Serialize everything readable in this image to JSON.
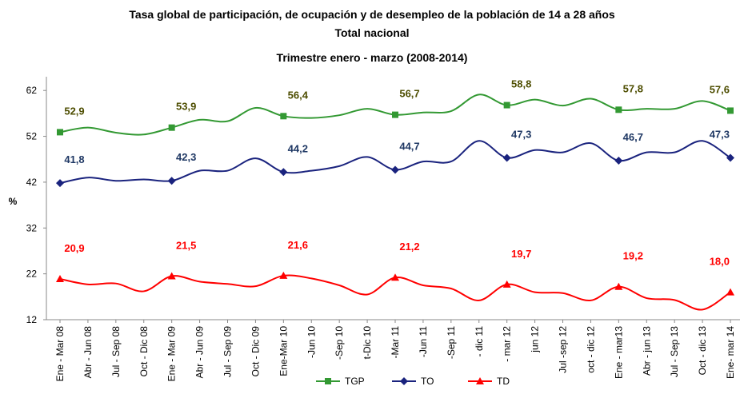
{
  "chart_data": {
    "type": "line",
    "title": "Tasa global de participación, de ocupación y de desempleo de la población de 14 a 28 años",
    "subtitle": "Total nacional",
    "period": "Trimestre enero - marzo (2008-2014)",
    "ylabel": "%",
    "categories": [
      "Ene - Mar 08",
      "Abr - Jun 08",
      "Jul - Sep 08",
      "Oct - Dic 08",
      "Ene - Mar 09",
      "Abr - Jun 09",
      "Jul - Sep 09",
      "Oct - Dic 09",
      "Ene-Mar 10",
      "-Jun 10",
      "-Sep 10",
      "t-Dic 10",
      "-Mar 11",
      "-Jun 11",
      "-Sep 11",
      "- dic 11",
      "- mar 12",
      "jun 12",
      "Jul -sep 12",
      "oct - dic 12",
      "Ene - mar13",
      "Abr - jun 13",
      "Jul - Sep 13",
      "Oct - dic 13",
      "Ene- mar 14"
    ],
    "ylim": [
      12,
      65
    ],
    "yticks": [
      12,
      22,
      32,
      42,
      52,
      62
    ],
    "grid": false,
    "legend": "bottom",
    "series": [
      {
        "name": "TGP",
        "color": "#339933",
        "label_color": "#4d4d00",
        "marker": "square",
        "values": [
          52.9,
          53.9,
          52.8,
          52.4,
          53.9,
          55.6,
          55.3,
          58.2,
          56.4,
          56.0,
          56.6,
          58.0,
          56.7,
          57.2,
          57.5,
          61.1,
          58.8,
          60.0,
          58.7,
          60.2,
          57.8,
          58.0,
          58.0,
          59.7,
          57.6
        ],
        "value_labels": [
          "52,9",
          null,
          null,
          null,
          "53,9",
          null,
          null,
          null,
          "56,4",
          null,
          null,
          null,
          "56,7",
          null,
          null,
          null,
          "58,8",
          null,
          null,
          null,
          "57,8",
          null,
          null,
          null,
          "57,6"
        ]
      },
      {
        "name": "TO",
        "color": "#1a237e",
        "label_color": "#1f3864",
        "marker": "diamond",
        "values": [
          41.8,
          43.0,
          42.3,
          42.6,
          42.3,
          44.5,
          44.5,
          47.2,
          44.2,
          44.5,
          45.5,
          47.5,
          44.7,
          46.5,
          46.5,
          51.0,
          47.3,
          49.0,
          48.5,
          50.5,
          46.7,
          48.5,
          48.5,
          51.0,
          47.3
        ],
        "value_labels": [
          "41,8",
          null,
          null,
          null,
          "42,3",
          null,
          null,
          null,
          "44,2",
          null,
          null,
          null,
          "44,7",
          null,
          null,
          null,
          "47,3",
          null,
          null,
          null,
          "46,7",
          null,
          null,
          null,
          "47,3"
        ]
      },
      {
        "name": "TD",
        "color": "#ff0000",
        "label_color": "#ff0000",
        "marker": "triangle",
        "values": [
          20.9,
          19.7,
          19.9,
          18.2,
          21.5,
          20.3,
          19.8,
          19.3,
          21.6,
          21.0,
          19.5,
          17.5,
          21.2,
          19.5,
          18.8,
          16.2,
          19.7,
          18.0,
          17.8,
          16.2,
          19.2,
          16.7,
          16.3,
          14.2,
          18.0
        ],
        "value_labels": [
          "20,9",
          null,
          null,
          null,
          "21,5",
          null,
          null,
          null,
          "21,6",
          null,
          null,
          null,
          "21,2",
          null,
          null,
          null,
          "19,7",
          null,
          null,
          null,
          "19,2",
          null,
          null,
          null,
          "18,0"
        ]
      }
    ]
  }
}
